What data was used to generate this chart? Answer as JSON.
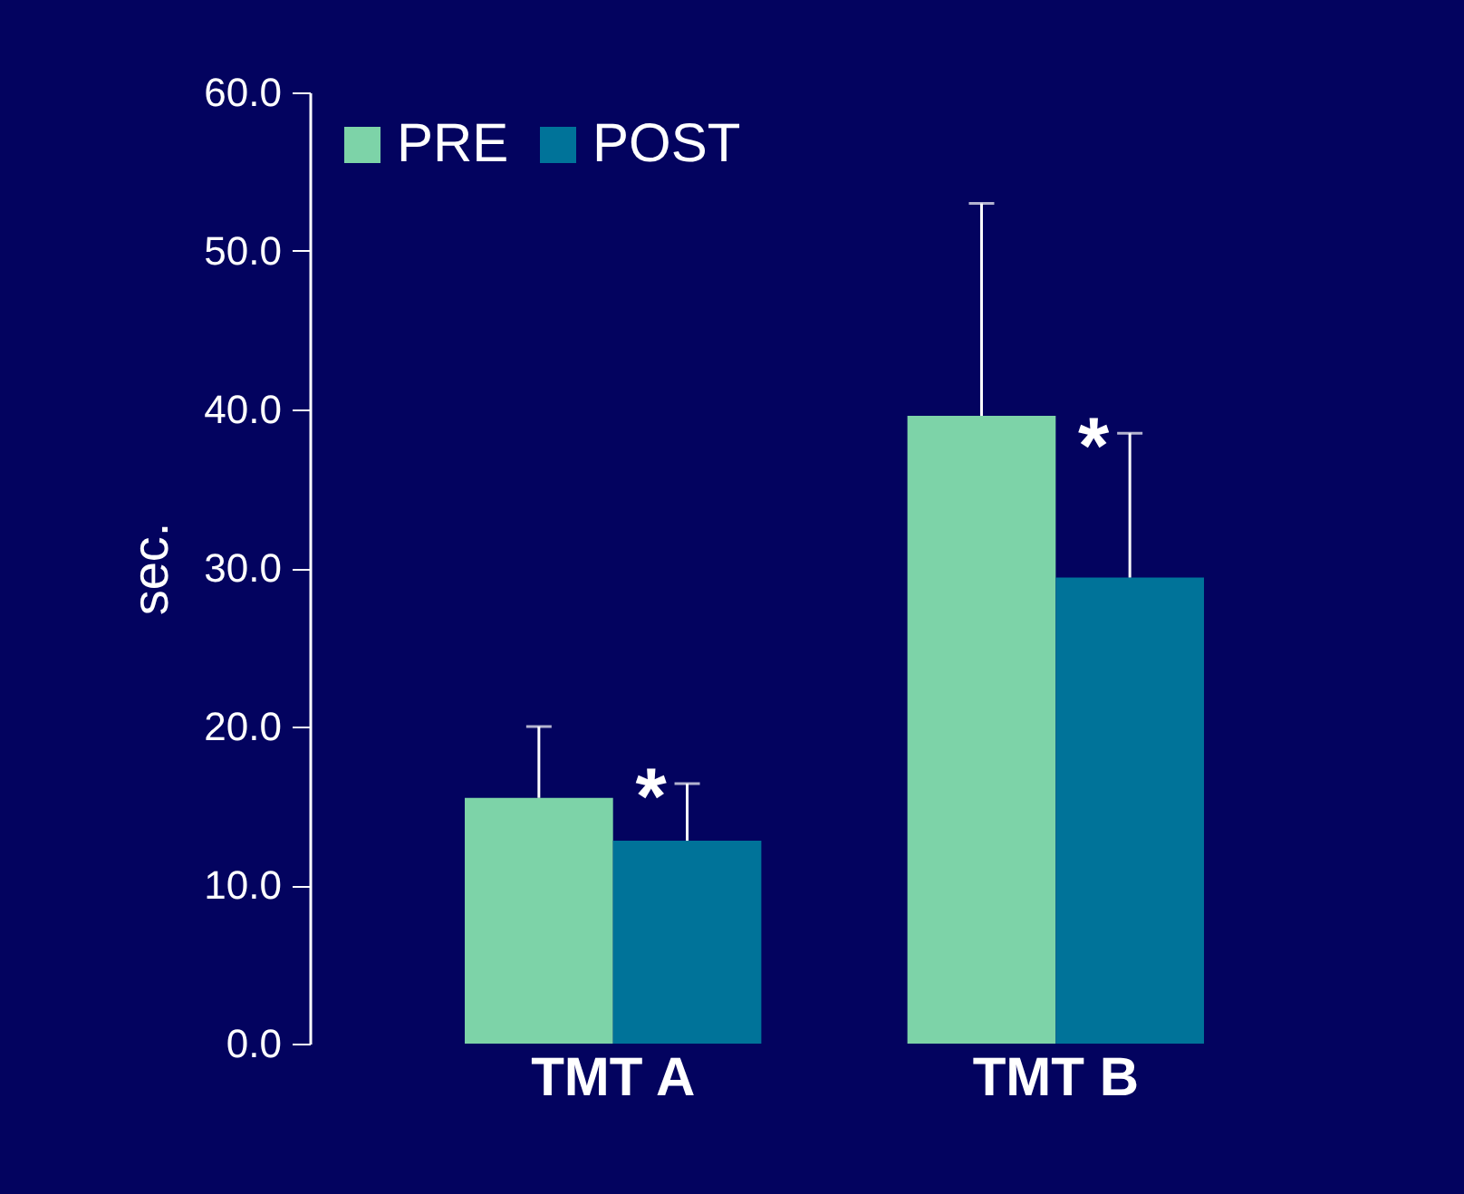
{
  "chart_data": {
    "type": "bar",
    "ylabel": "sec.",
    "categories": [
      "TMT A",
      "TMT B"
    ],
    "series": [
      {
        "name": "PRE",
        "color": "#7dd3a8",
        "values": [
          15.5,
          39.6
        ],
        "errors": [
          [
            15.5,
            20.0
          ],
          [
            39.6,
            53.0
          ]
        ]
      },
      {
        "name": "POST",
        "color": "#007399",
        "values": [
          12.8,
          29.4
        ],
        "errors": [
          [
            12.8,
            16.4
          ],
          [
            29.4,
            38.5
          ]
        ]
      }
    ],
    "annotations": [
      "*",
      "*"
    ],
    "ylim": [
      0,
      60
    ],
    "yticks": [
      {
        "value": 0,
        "label": "0.0"
      },
      {
        "value": 10,
        "label": "10.0"
      },
      {
        "value": 20,
        "label": "20.0"
      },
      {
        "value": 30,
        "label": "30.0"
      },
      {
        "value": 40,
        "label": "40.0"
      },
      {
        "value": 50,
        "label": "50.0"
      },
      {
        "value": 60,
        "label": "60.0"
      }
    ],
    "legend": "top left",
    "grid": false
  }
}
